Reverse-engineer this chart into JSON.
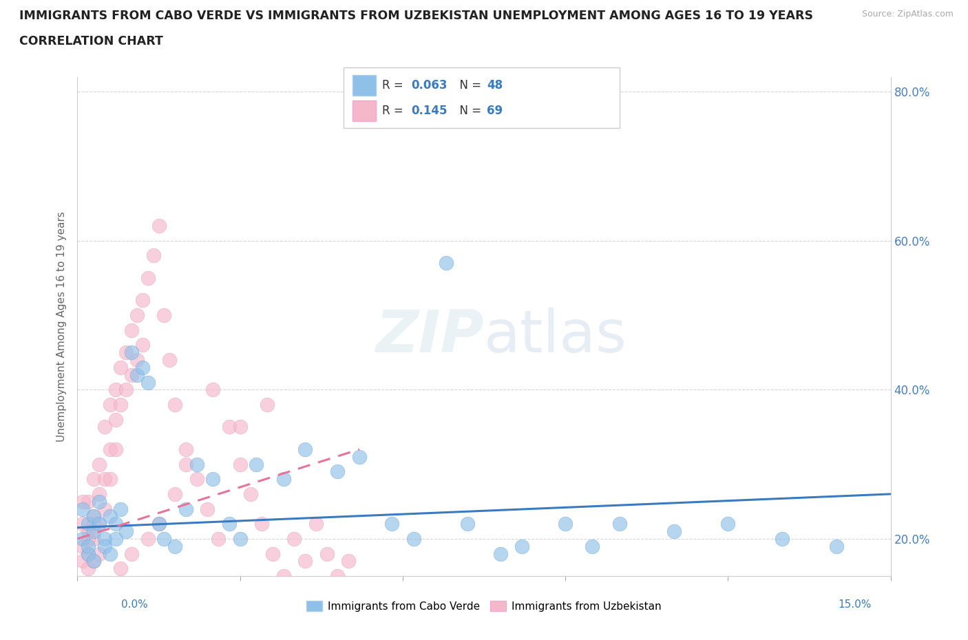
{
  "title_line1": "IMMIGRANTS FROM CABO VERDE VS IMMIGRANTS FROM UZBEKISTAN UNEMPLOYMENT AMONG AGES 16 TO 19 YEARS",
  "title_line2": "CORRELATION CHART",
  "source": "Source: ZipAtlas.com",
  "ylabel": "Unemployment Among Ages 16 to 19 years",
  "xlim": [
    0.0,
    0.15
  ],
  "ylim": [
    0.15,
    0.82
  ],
  "yticks": [
    0.2,
    0.4,
    0.6,
    0.8
  ],
  "ytick_labels_left": [
    "",
    "",
    "",
    ""
  ],
  "ytick_labels_right": [
    "20.0%",
    "40.0%",
    "60.0%",
    "80.0%"
  ],
  "color_cabo": "#8fc0e8",
  "color_uzbek": "#f5b8cb",
  "trendline_color_cabo": "#3a7bbf",
  "trendline_color_uzbek": "#e8729a",
  "R_cabo": 0.063,
  "N_cabo": 48,
  "R_uzbek": 0.145,
  "N_uzbek": 69,
  "legend_entries": [
    "Immigrants from Cabo Verde",
    "Immigrants from Uzbekistan"
  ],
  "watermark": "ZIPatlas",
  "cabo_x": [
    0.001,
    0.001,
    0.002,
    0.002,
    0.002,
    0.003,
    0.003,
    0.003,
    0.004,
    0.004,
    0.005,
    0.005,
    0.006,
    0.006,
    0.007,
    0.007,
    0.008,
    0.009,
    0.01,
    0.011,
    0.012,
    0.013,
    0.015,
    0.016,
    0.018,
    0.02,
    0.022,
    0.025,
    0.028,
    0.03,
    0.033,
    0.038,
    0.042,
    0.048,
    0.052,
    0.058,
    0.062,
    0.068,
    0.072,
    0.078,
    0.082,
    0.09,
    0.095,
    0.1,
    0.11,
    0.12,
    0.13,
    0.14
  ],
  "cabo_y": [
    0.24,
    0.2,
    0.22,
    0.18,
    0.19,
    0.21,
    0.23,
    0.17,
    0.22,
    0.25,
    0.2,
    0.19,
    0.23,
    0.18,
    0.22,
    0.2,
    0.24,
    0.21,
    0.45,
    0.42,
    0.43,
    0.41,
    0.22,
    0.2,
    0.19,
    0.24,
    0.3,
    0.28,
    0.22,
    0.2,
    0.3,
    0.28,
    0.32,
    0.29,
    0.31,
    0.22,
    0.2,
    0.57,
    0.22,
    0.18,
    0.19,
    0.22,
    0.19,
    0.22,
    0.21,
    0.22,
    0.2,
    0.19
  ],
  "uzbek_x": [
    0.001,
    0.001,
    0.001,
    0.002,
    0.002,
    0.002,
    0.002,
    0.003,
    0.003,
    0.003,
    0.003,
    0.004,
    0.004,
    0.004,
    0.005,
    0.005,
    0.005,
    0.006,
    0.006,
    0.006,
    0.007,
    0.007,
    0.007,
    0.008,
    0.008,
    0.009,
    0.009,
    0.01,
    0.01,
    0.011,
    0.011,
    0.012,
    0.012,
    0.013,
    0.014,
    0.015,
    0.016,
    0.017,
    0.018,
    0.02,
    0.022,
    0.024,
    0.026,
    0.028,
    0.03,
    0.032,
    0.034,
    0.036,
    0.038,
    0.04,
    0.042,
    0.044,
    0.046,
    0.048,
    0.05,
    0.02,
    0.018,
    0.015,
    0.013,
    0.01,
    0.008,
    0.006,
    0.004,
    0.003,
    0.002,
    0.001,
    0.025,
    0.03,
    0.035
  ],
  "uzbek_y": [
    0.22,
    0.19,
    0.17,
    0.25,
    0.21,
    0.18,
    0.16,
    0.28,
    0.23,
    0.2,
    0.17,
    0.3,
    0.26,
    0.22,
    0.35,
    0.28,
    0.24,
    0.38,
    0.32,
    0.28,
    0.4,
    0.36,
    0.32,
    0.43,
    0.38,
    0.45,
    0.4,
    0.48,
    0.42,
    0.5,
    0.44,
    0.52,
    0.46,
    0.55,
    0.58,
    0.62,
    0.5,
    0.44,
    0.38,
    0.32,
    0.28,
    0.24,
    0.2,
    0.35,
    0.3,
    0.26,
    0.22,
    0.18,
    0.15,
    0.2,
    0.17,
    0.22,
    0.18,
    0.15,
    0.17,
    0.3,
    0.26,
    0.22,
    0.2,
    0.18,
    0.16,
    0.14,
    0.18,
    0.22,
    0.2,
    0.25,
    0.4,
    0.35,
    0.38
  ],
  "cabo_trend_x": [
    0.0,
    0.15
  ],
  "cabo_trend_y": [
    0.215,
    0.26
  ],
  "uzbek_trend_x": [
    0.0,
    0.052
  ],
  "uzbek_trend_y": [
    0.2,
    0.32
  ]
}
